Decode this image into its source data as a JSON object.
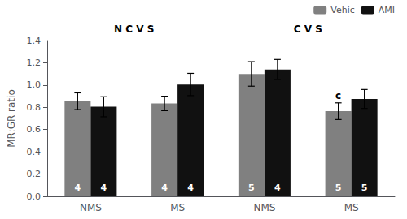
{
  "chart_data": {
    "type": "bar",
    "categories": [
      "NMS",
      "MS",
      "NMS",
      "MS"
    ],
    "section_labels": [
      "N C V S",
      "C V S"
    ],
    "series": [
      {
        "name": "Vehic",
        "color": "#808080",
        "values": [
          0.855,
          0.835,
          1.1,
          0.765
        ],
        "errors": [
          0.075,
          0.065,
          0.11,
          0.075
        ],
        "n_labels": [
          4,
          4,
          5,
          5
        ]
      },
      {
        "name": "AMI",
        "color": "#111111",
        "values": [
          0.805,
          1.005,
          1.14,
          0.875
        ],
        "errors": [
          0.09,
          0.1,
          0.09,
          0.085
        ],
        "n_labels": [
          4,
          4,
          4,
          5
        ]
      }
    ],
    "annotations": [
      {
        "text": "c",
        "series": "Vehic",
        "index": 3
      }
    ],
    "ylabel": "MR:GR ratio",
    "ylim": [
      0,
      1.4
    ],
    "yticks": [
      {
        "value": 0,
        "label": "0.0"
      },
      0.2,
      0.4,
      0.6,
      0.8,
      {
        "value": 1.0,
        "label": "1.0"
      },
      1.2,
      1.4
    ],
    "grid": false,
    "legend": "upper right"
  }
}
